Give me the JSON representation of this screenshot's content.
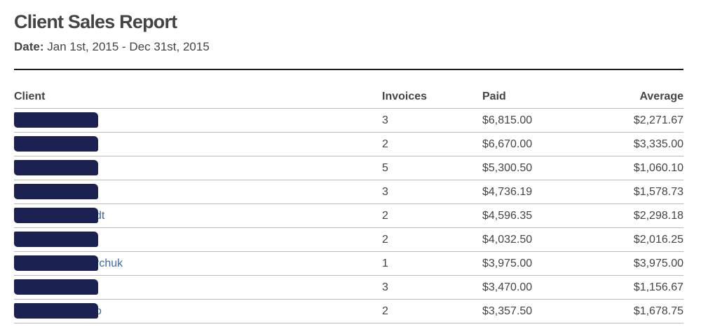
{
  "report": {
    "title": "Client Sales Report",
    "date_label": "Date:",
    "date_range": "Jan 1st, 2015 - Dec 31st, 2015"
  },
  "table": {
    "headers": {
      "client": "Client",
      "invoices": "Invoices",
      "paid": "Paid",
      "average": "Average"
    },
    "rows": [
      {
        "client_visible": "",
        "invoices": "3",
        "paid": "$6,815.00",
        "average": "$2,271.67"
      },
      {
        "client_visible": "",
        "invoices": "2",
        "paid": "$6,670.00",
        "average": "$3,335.00"
      },
      {
        "client_visible": "",
        "invoices": "5",
        "paid": "$5,300.50",
        "average": "$1,060.10"
      },
      {
        "client_visible": "",
        "invoices": "3",
        "paid": "$4,736.19",
        "average": "$1,578.73"
      },
      {
        "client_visible": "dt",
        "invoices": "2",
        "paid": "$4,596.35",
        "average": "$2,298.18"
      },
      {
        "client_visible": "",
        "invoices": "2",
        "paid": "$4,032.50",
        "average": "$2,016.25"
      },
      {
        "client_visible": "rchuk",
        "invoices": "1",
        "paid": "$3,975.00",
        "average": "$3,975.00"
      },
      {
        "client_visible": "",
        "invoices": "3",
        "paid": "$3,470.00",
        "average": "$1,156.67"
      },
      {
        "client_visible": "o",
        "invoices": "2",
        "paid": "$3,357.50",
        "average": "$1,678.75"
      }
    ]
  },
  "colors": {
    "text": "#444444",
    "link": "#3a6aa8",
    "redaction": "#1b2150",
    "rule": "#1a1a1a",
    "row_border": "#bbbbbb"
  }
}
